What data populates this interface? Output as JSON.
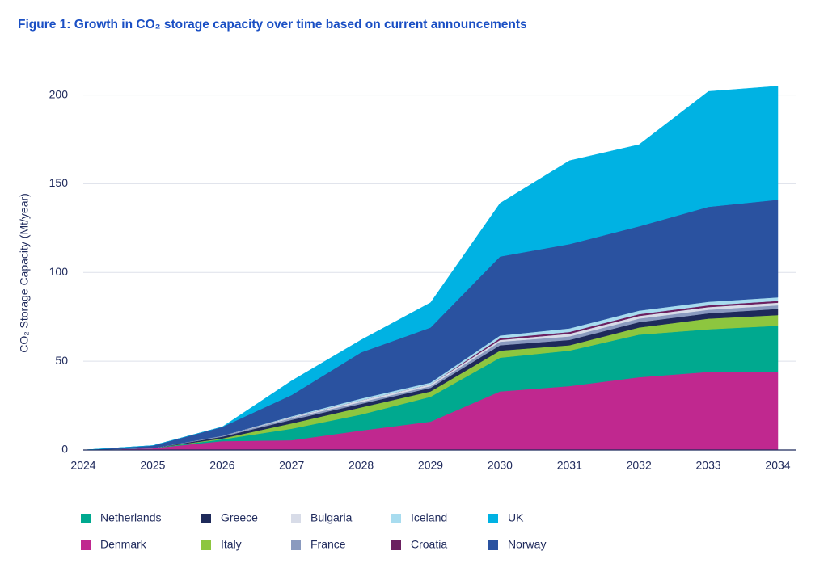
{
  "chart_data": {
    "type": "stacked-area",
    "title": "Figure 1: Growth in CO₂ storage capacity over time based on current announcements",
    "y_label": "CO₂ Storage Capacity (Mt/year)",
    "categories": [
      "2024",
      "2025",
      "2026",
      "2027",
      "2028",
      "2029",
      "2030",
      "2031",
      "2032",
      "2033",
      "2034"
    ],
    "ylim": [
      0,
      208
    ],
    "yticks": [
      0,
      50,
      100,
      150,
      200
    ],
    "grid": true,
    "series": [
      {
        "name": "Denmark",
        "color": "#c0288f",
        "values": [
          0,
          1,
          5,
          5.5,
          11,
          16,
          33,
          36,
          41,
          44,
          44
        ]
      },
      {
        "name": "Netherlands",
        "color": "#00a98f",
        "values": [
          0,
          0,
          1,
          6.5,
          9,
          14,
          19,
          20,
          24,
          24,
          26
        ]
      },
      {
        "name": "Italy",
        "color": "#8dc63f",
        "values": [
          0,
          0,
          0.5,
          3,
          4,
          3,
          4,
          3,
          4,
          6,
          6
        ]
      },
      {
        "name": "Greece",
        "color": "#1e2a5a",
        "values": [
          0,
          0,
          1,
          2,
          2,
          2,
          3,
          3,
          3,
          3,
          3.5
        ]
      },
      {
        "name": "France",
        "color": "#8a9abf",
        "values": [
          0,
          0,
          0.5,
          1,
          1,
          1,
          2,
          2,
          2,
          2,
          2
        ]
      },
      {
        "name": "Bulgaria",
        "color": "#d8dce8",
        "values": [
          0,
          0,
          0,
          0.5,
          1,
          1,
          1,
          1.5,
          1.5,
          1.5,
          1.5
        ]
      },
      {
        "name": "Croatia",
        "color": "#6b2060",
        "values": [
          0,
          0,
          0,
          0,
          0,
          0,
          1,
          1,
          1,
          1,
          1
        ]
      },
      {
        "name": "Iceland",
        "color": "#a8dcef",
        "values": [
          0,
          0,
          0,
          0.5,
          1,
          1,
          1.5,
          2,
          2,
          2,
          2
        ]
      },
      {
        "name": "Norway",
        "color": "#2a52a0",
        "values": [
          0,
          1.5,
          5,
          12,
          26,
          31,
          44.5,
          47.5,
          47.5,
          53.5,
          55
        ]
      },
      {
        "name": "UK",
        "color": "#00b2e3",
        "values": [
          0,
          0,
          0,
          8,
          7,
          14,
          30,
          47,
          46,
          65,
          64
        ]
      }
    ]
  }
}
